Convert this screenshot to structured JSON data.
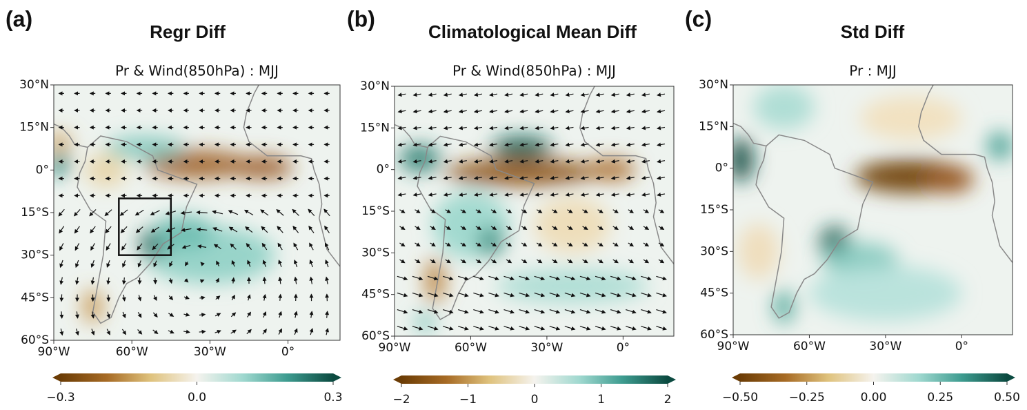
{
  "chart_data": [
    {
      "type": "map",
      "panel_label": "(a)",
      "title": "Regr Diff",
      "subtitle": "Pr & Wind(850hPa) : MJJ",
      "xlim": [
        -90,
        20
      ],
      "ylim": [
        -60,
        30
      ],
      "xticks": [
        {
          "value": -90,
          "label": "90°W"
        },
        {
          "value": -60,
          "label": "60°W"
        },
        {
          "value": -30,
          "label": "30°W"
        },
        {
          "value": 0,
          "label": "0°"
        }
      ],
      "yticks": [
        {
          "value": 30,
          "label": "30°N"
        },
        {
          "value": 15,
          "label": "15°N"
        },
        {
          "value": 0,
          "label": "0°"
        },
        {
          "value": -15,
          "label": "15°S"
        },
        {
          "value": -30,
          "label": "30°S"
        },
        {
          "value": -45,
          "label": "45°S"
        },
        {
          "value": -60,
          "label": "60°S"
        }
      ],
      "box": {
        "lon": [
          -65,
          -45
        ],
        "lat": [
          -30,
          -10
        ]
      },
      "colorbar": {
        "lim": [
          -0.3,
          0.3
        ],
        "ticks": [
          {
            "value": -0.3,
            "label": "−0.3"
          },
          {
            "value": 0,
            "label": "0.0"
          },
          0.3
        ]
      }
    },
    {
      "type": "map",
      "panel_label": "(b)",
      "title": "Climatological Mean Diff",
      "subtitle": "Pr & Wind(850hPa) : MJJ",
      "xlim": [
        -90,
        20
      ],
      "ylim": [
        -60,
        30
      ],
      "xticks": [
        {
          "value": -90,
          "label": "90°W"
        },
        {
          "value": -60,
          "label": "60°W"
        },
        {
          "value": -30,
          "label": "30°W"
        },
        {
          "value": 0,
          "label": "0°"
        }
      ],
      "yticks": [
        {
          "value": 30,
          "label": "30°N"
        },
        {
          "value": 15,
          "label": "15°N"
        },
        {
          "value": 0,
          "label": "0°"
        },
        {
          "value": -15,
          "label": "15°S"
        },
        {
          "value": -30,
          "label": "30°S"
        },
        {
          "value": -45,
          "label": "45°S"
        },
        {
          "value": -60,
          "label": "60°S"
        }
      ],
      "colorbar": {
        "lim": [
          -2,
          2
        ],
        "ticks": [
          {
            "value": -2,
            "label": "−2"
          },
          {
            "value": -1,
            "label": "−1"
          },
          0,
          1,
          2
        ]
      }
    },
    {
      "type": "map",
      "panel_label": "(c)",
      "title": "Std Diff",
      "subtitle": "Pr : MJJ",
      "xlim": [
        -90,
        20
      ],
      "ylim": [
        -60,
        30
      ],
      "xticks": [
        {
          "value": -90,
          "label": "90°W"
        },
        {
          "value": -60,
          "label": "60°W"
        },
        {
          "value": -30,
          "label": "30°W"
        },
        {
          "value": 0,
          "label": "0°"
        }
      ],
      "yticks": [
        {
          "value": 30,
          "label": "30°N"
        },
        {
          "value": 15,
          "label": "15°N"
        },
        {
          "value": 0,
          "label": "0°"
        },
        {
          "value": -15,
          "label": "15°S"
        },
        {
          "value": -30,
          "label": "30°S"
        },
        {
          "value": -45,
          "label": "45°S"
        },
        {
          "value": -60,
          "label": "60°S"
        }
      ],
      "colorbar": {
        "lim": [
          -0.5,
          0.5
        ],
        "ticks": [
          {
            "value": -0.5,
            "label": "−0.50"
          },
          {
            "value": -0.25,
            "label": "−0.25"
          },
          {
            "value": 0,
            "label": "0.00"
          },
          {
            "value": 0.25,
            "label": "0.25"
          },
          {
            "value": 0.5,
            "label": "0.50"
          }
        ]
      }
    }
  ]
}
